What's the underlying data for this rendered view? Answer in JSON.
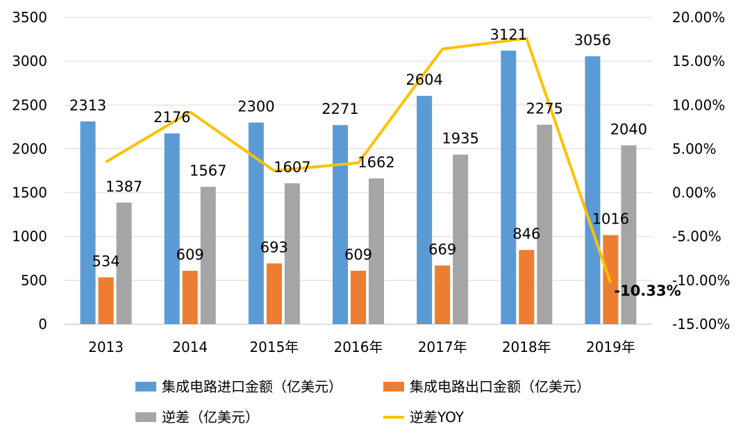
{
  "chart_data": {
    "type": "bar",
    "categories": [
      "2013",
      "2014",
      "2015年",
      "2016年",
      "2017年",
      "2018年",
      "2019年"
    ],
    "series": [
      {
        "name": "集成电路进口金额（亿美元）",
        "type": "bar",
        "axis": "left",
        "color": "#5b9bd5",
        "values": [
          2313,
          2176,
          2300,
          2271,
          2604,
          3121,
          3056
        ]
      },
      {
        "name": "集成电路出口金额（亿美元）",
        "type": "bar",
        "axis": "left",
        "color": "#ed7d31",
        "values": [
          534,
          609,
          693,
          609,
          669,
          846,
          1016
        ]
      },
      {
        "name": "逆差（亿美元）",
        "type": "bar",
        "axis": "left",
        "color": "#a5a5a5",
        "values": [
          1387,
          1567,
          1607,
          1662,
          1935,
          2275,
          2040
        ]
      },
      {
        "name": "逆差YOY",
        "type": "line",
        "axis": "right",
        "color": "#ffc000",
        "values": [
          3.5,
          9.2,
          2.5,
          3.4,
          16.4,
          17.6,
          -10.33
        ]
      }
    ],
    "ylim": [
      0,
      3500
    ],
    "yticks": [
      0,
      500,
      1000,
      1500,
      2000,
      2500,
      3000,
      3500
    ],
    "y2lim": [
      -15,
      20
    ],
    "y2ticks": [
      "-15.00%",
      "-10.00%",
      "-5.00%",
      "0.00%",
      "5.00%",
      "10.00%",
      "15.00%",
      "20.00%"
    ],
    "annotation": "-10.33%",
    "legend_position": "bottom",
    "grid": true
  }
}
